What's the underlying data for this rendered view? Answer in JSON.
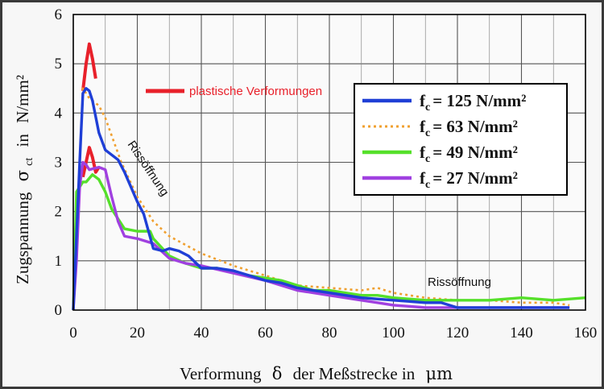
{
  "chart_data": {
    "type": "line",
    "xlabel_parts": {
      "pre": "Verformung",
      "symbol": "δ",
      "post": "der Meßstrecke in",
      "unit": "μm"
    },
    "ylabel_parts": {
      "pre": "Zugspannung",
      "symbol": "σ",
      "sub": "ct",
      "post": "in",
      "unit": "N/mm²"
    },
    "xlim": [
      0,
      160
    ],
    "ylim": [
      0,
      6
    ],
    "xticks": [
      "0",
      "20",
      "40",
      "60",
      "80",
      "100",
      "120",
      "140",
      "160"
    ],
    "yticks": [
      "0",
      "1",
      "2",
      "3",
      "4",
      "5",
      "6"
    ],
    "grid": true,
    "legend_position": "top-right",
    "series": [
      {
        "name": "= 125 N/mm²",
        "color": "#1f3fd6",
        "style": "solid",
        "x": [
          0,
          1,
          2,
          3,
          4,
          5,
          6,
          8,
          10,
          12,
          14,
          16,
          18,
          20,
          22,
          25,
          28,
          30,
          33,
          36,
          40,
          45,
          50,
          55,
          60,
          65,
          70,
          75,
          80,
          90,
          100,
          110,
          115,
          120,
          130,
          140,
          150,
          155
        ],
        "y": [
          0,
          1.5,
          3.0,
          4.4,
          4.5,
          4.45,
          4.25,
          3.6,
          3.25,
          3.15,
          3.05,
          2.8,
          2.5,
          2.2,
          1.95,
          1.25,
          1.2,
          1.25,
          1.2,
          1.1,
          0.85,
          0.85,
          0.8,
          0.7,
          0.6,
          0.55,
          0.45,
          0.4,
          0.35,
          0.25,
          0.2,
          0.15,
          0.15,
          0.05,
          0.05,
          0.05,
          0.05,
          0.05
        ]
      },
      {
        "name": "= 63 N/mm²",
        "color": "#f0a030",
        "style": "dotted",
        "x": [
          0,
          2,
          3,
          5,
          8,
          10,
          15,
          20,
          25,
          30,
          40,
          50,
          60,
          70,
          80,
          90,
          95,
          100,
          110,
          120,
          130,
          140,
          150,
          155
        ],
        "y": [
          0,
          3.0,
          4.5,
          4.3,
          4.15,
          3.9,
          3.0,
          2.3,
          1.8,
          1.5,
          1.15,
          0.9,
          0.7,
          0.5,
          0.45,
          0.4,
          0.45,
          0.35,
          0.25,
          0.2,
          0.2,
          0.15,
          0.15,
          0.1
        ]
      },
      {
        "name": "= 49 N/mm²",
        "color": "#55e02a",
        "style": "solid",
        "x": [
          0,
          1,
          2,
          3,
          4,
          6,
          8,
          10,
          12,
          14,
          16,
          20,
          24,
          25,
          30,
          35,
          40,
          45,
          50,
          60,
          65,
          70,
          75,
          80,
          90,
          95,
          100,
          110,
          120,
          130,
          140,
          150,
          160
        ],
        "y": [
          0,
          2.4,
          2.5,
          2.6,
          2.6,
          2.75,
          2.65,
          2.4,
          2.05,
          1.85,
          1.65,
          1.6,
          1.6,
          1.45,
          1.1,
          0.95,
          0.85,
          0.85,
          0.75,
          0.65,
          0.6,
          0.5,
          0.4,
          0.4,
          0.3,
          0.3,
          0.25,
          0.2,
          0.2,
          0.2,
          0.25,
          0.2,
          0.25
        ]
      },
      {
        "name": "= 27 N/mm²",
        "color": "#a040e0",
        "style": "solid",
        "x": [
          0,
          1,
          2,
          3,
          4,
          5,
          8,
          10,
          12,
          14,
          16,
          20,
          25,
          30,
          35,
          40,
          50,
          60,
          65,
          70,
          75,
          80,
          90,
          95,
          100,
          110,
          120,
          130,
          140,
          150,
          155
        ],
        "y": [
          0,
          1.0,
          2.5,
          3.0,
          2.95,
          2.85,
          2.9,
          2.85,
          2.3,
          1.8,
          1.5,
          1.45,
          1.35,
          1.05,
          0.95,
          0.9,
          0.75,
          0.6,
          0.5,
          0.4,
          0.35,
          0.3,
          0.2,
          0.15,
          0.1,
          0.05,
          0.05,
          0.05,
          0.05,
          0.05,
          0.05
        ]
      }
    ],
    "plastic_segments": [
      {
        "x": [
          3,
          4,
          5,
          6,
          7
        ],
        "y": [
          4.45,
          5.0,
          5.4,
          5.1,
          4.7
        ]
      },
      {
        "x": [
          3,
          4,
          5,
          6,
          7,
          8
        ],
        "y": [
          2.7,
          3.0,
          3.3,
          3.1,
          2.8,
          2.9
        ]
      }
    ],
    "plastic_color": "#e8202a",
    "annotations": {
      "plastic_label": "plastische Verformungen",
      "crack_label_1": "Rissöffnung",
      "crack_label_2": "Rissöffnung"
    },
    "legend_prefix": {
      "main": "f",
      "sub": "c"
    }
  }
}
